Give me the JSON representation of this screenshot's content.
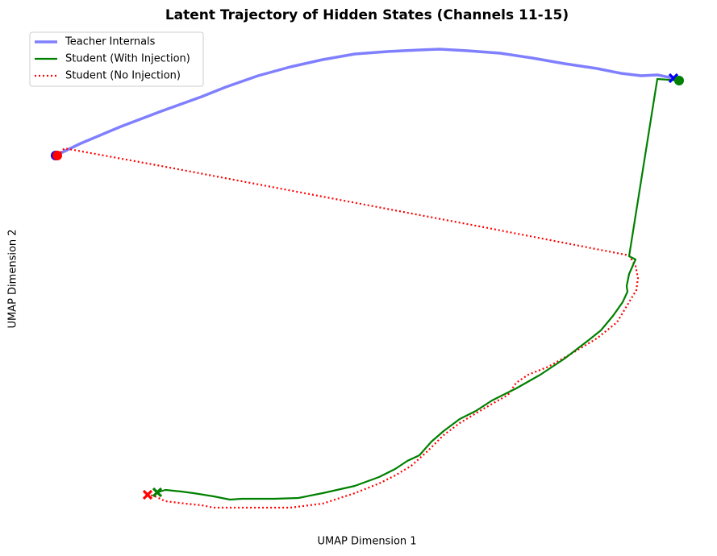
{
  "chart_data": {
    "type": "line",
    "title": "Latent Trajectory of Hidden States (Channels 11-15)",
    "x_label": "UMAP Dimension 1",
    "y_label": "UMAP Dimension 2",
    "xlim": [
      40,
      870
    ],
    "ylim": [
      50,
      665
    ],
    "legend": "upper left",
    "series": [
      {
        "name": "Teacher Internals",
        "color": "#0000ff",
        "opacity": 0.5,
        "linestyle": "solid",
        "x": [
          69,
          100,
          150,
          200,
          250,
          280,
          320,
          360,
          400,
          440,
          480,
          520,
          545,
          580,
          620,
          660,
          700,
          740,
          770,
          795,
          815,
          835
        ],
        "values": [
          507,
          522,
          543,
          562,
          580,
          592,
          606,
          617,
          626,
          633,
          636,
          638,
          639,
          637,
          634,
          628,
          621,
          615,
          609,
          606,
          607,
          603
        ]
      },
      {
        "name": "Student (With Injection)",
        "color": "#008000",
        "opacity": 1,
        "linestyle": "solid",
        "x": [
          842,
          815,
          780,
          788,
          780,
          777,
          778,
          772,
          760,
          745,
          730,
          700,
          670,
          640,
          610,
          590,
          570,
          550,
          535,
          520,
          505,
          490,
          470,
          440,
          400,
          370,
          340,
          300,
          285,
          265,
          240,
          225,
          205,
          195
        ],
        "values": [
          600,
          602,
          382,
          378,
          360,
          345,
          338,
          325,
          308,
          290,
          278,
          255,
          235,
          218,
          203,
          190,
          180,
          165,
          152,
          135,
          128,
          118,
          108,
          97,
          88,
          82,
          81,
          81,
          80,
          84,
          88,
          90,
          92,
          89
        ]
      },
      {
        "name": "Student (No Injection)",
        "color": "#ff0000",
        "opacity": 1,
        "linestyle": "dotted",
        "x": [
          71,
          80,
          200,
          400,
          600,
          780,
          788,
          791,
          789,
          780,
          765,
          740,
          710,
          680,
          655,
          640,
          630,
          600,
          570,
          550,
          530,
          510,
          490,
          470,
          440,
          400,
          360,
          300,
          265,
          250,
          230,
          205,
          190,
          183
        ],
        "values": [
          507,
          516,
          494,
          456,
          418,
          383,
          370,
          355,
          340,
          325,
          300,
          280,
          262,
          245,
          235,
          225,
          210,
          193,
          175,
          160,
          140,
          122,
          110,
          100,
          88,
          75,
          70,
          70,
          70,
          73,
          75,
          78,
          85,
          86
        ]
      }
    ]
  }
}
